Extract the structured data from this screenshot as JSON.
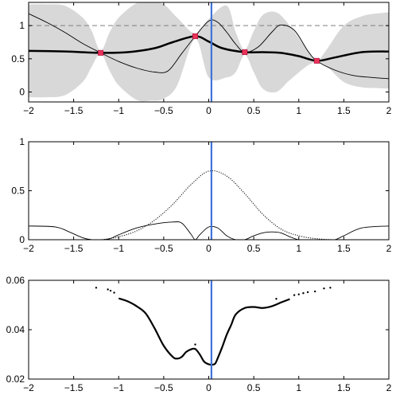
{
  "chart_data": [
    {
      "type": "line",
      "title": "",
      "xlabel": "",
      "ylabel": "",
      "xlim": [
        -2,
        2
      ],
      "ylim": [
        -0.15,
        1.35
      ],
      "xticks": [
        -2,
        -1.5,
        -1,
        -0.5,
        0,
        0.5,
        1,
        1.5,
        2
      ],
      "xtick_labels": [
        "−2",
        "−1.5",
        "−1",
        "−0.5",
        "0",
        "0.5",
        "1",
        "1.5",
        "2"
      ],
      "yticks": [
        0,
        0.5,
        1
      ],
      "ytick_labels": [
        "0",
        "0.5",
        "1"
      ],
      "reference_line_y": 1,
      "marker_line_x": 0.03,
      "band": {
        "x": [
          -2.0,
          -1.8,
          -1.6,
          -1.4,
          -1.3,
          -1.2,
          -1.1,
          -1.0,
          -0.8,
          -0.65,
          -0.5,
          -0.35,
          -0.15,
          0.0,
          0.2,
          0.3,
          0.4,
          0.5,
          0.6,
          0.75,
          0.9,
          1.1,
          1.2,
          1.3,
          1.5,
          1.7,
          1.85,
          2.0
        ],
        "upper": [
          1.32,
          1.32,
          1.3,
          1.12,
          0.92,
          0.62,
          0.9,
          1.12,
          1.34,
          1.36,
          1.32,
          1.12,
          0.88,
          1.1,
          1.3,
          0.9,
          0.64,
          0.92,
          1.16,
          1.2,
          1.0,
          0.62,
          0.48,
          0.62,
          1.0,
          1.14,
          1.18,
          1.2
        ],
        "lower": [
          -0.08,
          -0.08,
          -0.05,
          0.15,
          0.38,
          0.58,
          0.32,
          0.1,
          -0.12,
          -0.13,
          -0.1,
          0.1,
          0.8,
          0.22,
          0.22,
          0.3,
          0.56,
          0.3,
          0.05,
          0.0,
          0.18,
          0.4,
          0.44,
          0.4,
          0.15,
          0.07,
          0.06,
          0.05
        ]
      },
      "series": [
        {
          "role": "mean",
          "x": [
            -2.0,
            -1.6,
            -1.2,
            -0.9,
            -0.6,
            -0.4,
            -0.15,
            0.0,
            0.15,
            0.4,
            0.6,
            0.8,
            1.0,
            1.2,
            1.4,
            1.7,
            2.0
          ],
          "y": [
            0.62,
            0.61,
            0.59,
            0.6,
            0.66,
            0.75,
            0.84,
            0.76,
            0.66,
            0.6,
            0.6,
            0.59,
            0.54,
            0.47,
            0.52,
            0.6,
            0.61
          ]
        },
        {
          "role": "sample",
          "x": [
            -2.0,
            -1.8,
            -1.6,
            -1.4,
            -1.2,
            -1.0,
            -0.8,
            -0.6,
            -0.45,
            -0.3,
            -0.15,
            0.0,
            0.1,
            0.2,
            0.3,
            0.4,
            0.55,
            0.7,
            0.8,
            0.95,
            1.1,
            1.2,
            1.4,
            1.6,
            1.8,
            2.0
          ],
          "y": [
            1.18,
            1.05,
            0.9,
            0.73,
            0.59,
            0.46,
            0.36,
            0.3,
            0.32,
            0.58,
            0.84,
            1.07,
            1.05,
            0.9,
            0.72,
            0.6,
            0.68,
            0.9,
            1.01,
            0.93,
            0.62,
            0.47,
            0.33,
            0.25,
            0.22,
            0.2
          ]
        }
      ],
      "points": {
        "x": [
          -1.2,
          -0.15,
          0.4,
          1.2
        ],
        "y": [
          0.59,
          0.84,
          0.6,
          0.47
        ],
        "color": "#e8335a"
      }
    },
    {
      "type": "line",
      "title": "",
      "xlabel": "",
      "ylabel": "",
      "xlim": [
        -2,
        2
      ],
      "ylim": [
        0,
        1
      ],
      "xticks": [
        -2,
        -1.5,
        -1,
        -0.5,
        0,
        0.5,
        1,
        1.5,
        2
      ],
      "xtick_labels": [
        "−2",
        "−1.5",
        "−1",
        "−0.5",
        "0",
        "0.5",
        "1",
        "1.5",
        "2"
      ],
      "yticks": [
        0,
        0.5,
        1
      ],
      "ytick_labels": [
        "0",
        "0.5",
        "1"
      ],
      "marker_line_x": 0.03,
      "series": [
        {
          "role": "solid",
          "x": [
            -2.0,
            -1.7,
            -1.55,
            -1.4,
            -1.3,
            -1.2,
            -1.1,
            -1.0,
            -0.8,
            -0.6,
            -0.4,
            -0.3,
            -0.2,
            -0.15,
            -0.1,
            0.0,
            0.1,
            0.2,
            0.3,
            0.4,
            0.5,
            0.6,
            0.7,
            0.8,
            0.9,
            1.0,
            1.1,
            1.2,
            1.3,
            1.4,
            1.5,
            1.7,
            2.0
          ],
          "y": [
            0.14,
            0.13,
            0.08,
            0.02,
            0.0,
            0.0,
            0.01,
            0.05,
            0.12,
            0.16,
            0.18,
            0.17,
            0.06,
            0.0,
            0.05,
            0.13,
            0.12,
            0.04,
            0.0,
            0.0,
            0.04,
            0.07,
            0.08,
            0.07,
            0.03,
            0.0,
            0.0,
            0.0,
            0.0,
            0.0,
            0.04,
            0.12,
            0.14
          ]
        },
        {
          "role": "dotted",
          "x": [
            -2.0,
            -1.6,
            -1.4,
            -1.2,
            -1.0,
            -0.8,
            -0.6,
            -0.4,
            -0.2,
            0.0,
            0.2,
            0.4,
            0.6,
            0.8,
            1.0,
            1.2,
            1.4,
            1.6,
            2.0
          ],
          "y": [
            0.0,
            0.0,
            0.0,
            0.0,
            0.03,
            0.09,
            0.2,
            0.36,
            0.56,
            0.7,
            0.65,
            0.47,
            0.26,
            0.11,
            0.04,
            0.01,
            0.0,
            0.0,
            0.0
          ]
        }
      ]
    },
    {
      "type": "line",
      "title": "",
      "xlabel": "",
      "ylabel": "",
      "xlim": [
        -2,
        2
      ],
      "ylim": [
        0.02,
        0.06
      ],
      "xticks": [
        -2,
        -1.5,
        -1,
        -0.5,
        0,
        0.5,
        1,
        1.5,
        2
      ],
      "xtick_labels": [
        "−2",
        "−1.5",
        "−1",
        "−0.5",
        "0",
        "0.5",
        "1",
        "1.5",
        "2"
      ],
      "yticks": [
        0.02,
        0.04,
        0.06
      ],
      "ytick_labels": [
        "0.02",
        "0.04",
        "0.06"
      ],
      "marker_line_x": 0.03,
      "series": [
        {
          "role": "curve",
          "x": [
            -1.0,
            -0.9,
            -0.8,
            -0.7,
            -0.6,
            -0.5,
            -0.4,
            -0.35,
            -0.3,
            -0.25,
            -0.2,
            -0.15,
            -0.1,
            -0.05,
            0.0,
            0.03,
            0.07,
            0.1,
            0.15,
            0.2,
            0.25,
            0.3,
            0.4,
            0.5,
            0.6,
            0.7,
            0.8,
            0.9
          ],
          "y": [
            0.0527,
            0.0515,
            0.0495,
            0.0466,
            0.0405,
            0.0335,
            0.029,
            0.0283,
            0.029,
            0.031,
            0.032,
            0.0322,
            0.03,
            0.027,
            0.026,
            0.0258,
            0.0262,
            0.0285,
            0.033,
            0.038,
            0.042,
            0.0462,
            0.0488,
            0.0492,
            0.0488,
            0.0495,
            0.051,
            0.0524
          ]
        }
      ],
      "scatter": {
        "x": [
          -1.25,
          -1.12,
          -1.09,
          -1.05,
          -0.15,
          0.75,
          0.95,
          1.0,
          1.05,
          1.1,
          1.18,
          1.28,
          1.35
        ],
        "y": [
          0.057,
          0.0563,
          0.0558,
          0.055,
          0.034,
          0.0525,
          0.054,
          0.0543,
          0.0548,
          0.0552,
          0.0555,
          0.0567,
          0.057
        ]
      }
    }
  ],
  "colors": {
    "band": "#d8d8d8",
    "marker_line": "#3f73d9",
    "points": "#e8335a",
    "reference": "#7f7f7f",
    "ink": "#000000"
  }
}
